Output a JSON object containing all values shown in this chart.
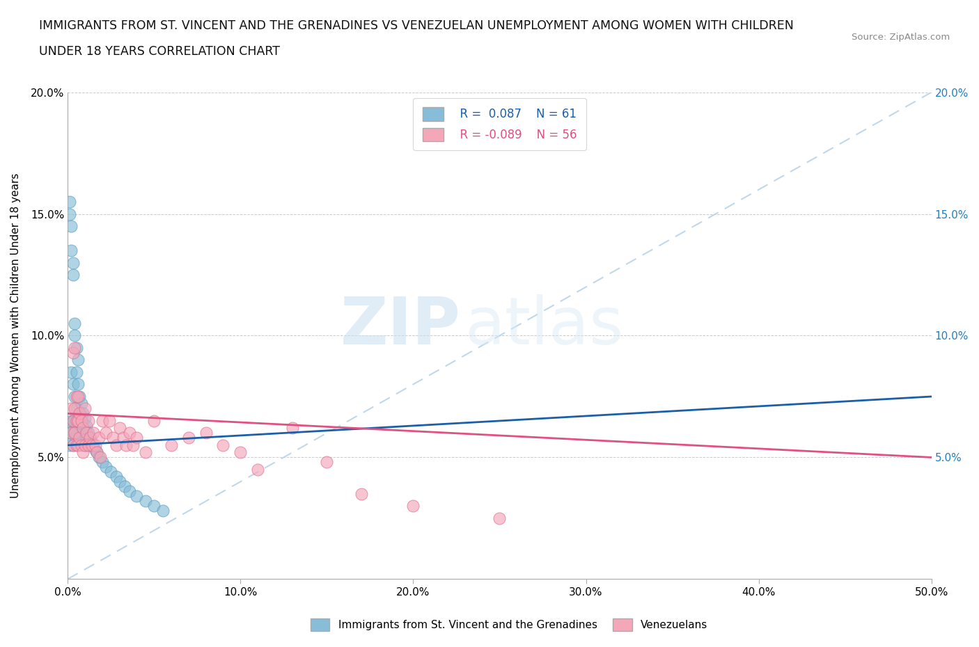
{
  "title_line1": "IMMIGRANTS FROM ST. VINCENT AND THE GRENADINES VS VENEZUELAN UNEMPLOYMENT AMONG WOMEN WITH CHILDREN",
  "title_line2": "UNDER 18 YEARS CORRELATION CHART",
  "source_text": "Source: ZipAtlas.com",
  "ylabel": "Unemployment Among Women with Children Under 18 years",
  "xlim": [
    0,
    0.5
  ],
  "ylim": [
    0,
    0.2
  ],
  "xticks": [
    0.0,
    0.1,
    0.2,
    0.3,
    0.4,
    0.5
  ],
  "xticklabels": [
    "0.0%",
    "10.0%",
    "20.0%",
    "30.0%",
    "40.0%",
    "50.0%"
  ],
  "yticks": [
    0.0,
    0.05,
    0.1,
    0.15,
    0.2
  ],
  "yticklabels_left": [
    "",
    "5.0%",
    "10.0%",
    "15.0%",
    "20.0%"
  ],
  "yticklabels_right": [
    "",
    "5.0%",
    "10.0%",
    "15.0%",
    "20.0%"
  ],
  "blue_R": 0.087,
  "blue_N": 61,
  "pink_R": -0.089,
  "pink_N": 56,
  "blue_color": "#87bdd8",
  "pink_color": "#f4a7b9",
  "blue_edge_color": "#5a9fc0",
  "pink_edge_color": "#e07090",
  "blue_line_color": "#1a5fa8",
  "pink_line_color": "#e05080",
  "diag_color": "#b8d4e8",
  "legend_label_blue": "Immigrants from St. Vincent and the Grenadines",
  "legend_label_pink": "Venezuelans",
  "watermark_zip": "ZIP",
  "watermark_atlas": "atlas",
  "blue_scatter_x": [
    0.001,
    0.001,
    0.001,
    0.001,
    0.002,
    0.002,
    0.002,
    0.002,
    0.002,
    0.003,
    0.003,
    0.003,
    0.003,
    0.003,
    0.003,
    0.004,
    0.004,
    0.004,
    0.004,
    0.004,
    0.005,
    0.005,
    0.005,
    0.005,
    0.005,
    0.006,
    0.006,
    0.006,
    0.006,
    0.007,
    0.007,
    0.007,
    0.008,
    0.008,
    0.008,
    0.009,
    0.009,
    0.01,
    0.01,
    0.01,
    0.011,
    0.011,
    0.012,
    0.012,
    0.013,
    0.014,
    0.015,
    0.016,
    0.017,
    0.018,
    0.02,
    0.022,
    0.025,
    0.028,
    0.03,
    0.033,
    0.036,
    0.04,
    0.045,
    0.05,
    0.055
  ],
  "blue_scatter_y": [
    0.155,
    0.15,
    0.06,
    0.055,
    0.145,
    0.135,
    0.085,
    0.065,
    0.06,
    0.13,
    0.125,
    0.08,
    0.065,
    0.06,
    0.055,
    0.105,
    0.1,
    0.075,
    0.065,
    0.06,
    0.095,
    0.085,
    0.07,
    0.065,
    0.06,
    0.09,
    0.08,
    0.065,
    0.06,
    0.075,
    0.068,
    0.06,
    0.072,
    0.065,
    0.058,
    0.068,
    0.062,
    0.066,
    0.06,
    0.055,
    0.063,
    0.058,
    0.06,
    0.055,
    0.058,
    0.056,
    0.055,
    0.053,
    0.052,
    0.05,
    0.048,
    0.046,
    0.044,
    0.042,
    0.04,
    0.038,
    0.036,
    0.034,
    0.032,
    0.03,
    0.028
  ],
  "pink_scatter_x": [
    0.002,
    0.002,
    0.003,
    0.003,
    0.003,
    0.004,
    0.004,
    0.004,
    0.005,
    0.005,
    0.005,
    0.006,
    0.006,
    0.006,
    0.007,
    0.007,
    0.008,
    0.008,
    0.009,
    0.009,
    0.01,
    0.01,
    0.011,
    0.012,
    0.012,
    0.013,
    0.014,
    0.015,
    0.016,
    0.017,
    0.018,
    0.019,
    0.02,
    0.022,
    0.024,
    0.026,
    0.028,
    0.03,
    0.032,
    0.034,
    0.036,
    0.038,
    0.04,
    0.045,
    0.05,
    0.06,
    0.07,
    0.08,
    0.09,
    0.1,
    0.11,
    0.13,
    0.15,
    0.17,
    0.2,
    0.25
  ],
  "pink_scatter_y": [
    0.07,
    0.06,
    0.093,
    0.065,
    0.055,
    0.095,
    0.07,
    0.06,
    0.075,
    0.065,
    0.055,
    0.075,
    0.065,
    0.055,
    0.068,
    0.058,
    0.065,
    0.055,
    0.062,
    0.052,
    0.07,
    0.055,
    0.06,
    0.065,
    0.055,
    0.058,
    0.055,
    0.06,
    0.055,
    0.052,
    0.058,
    0.05,
    0.065,
    0.06,
    0.065,
    0.058,
    0.055,
    0.062,
    0.058,
    0.055,
    0.06,
    0.055,
    0.058,
    0.052,
    0.065,
    0.055,
    0.058,
    0.06,
    0.055,
    0.052,
    0.045,
    0.062,
    0.048,
    0.035,
    0.03,
    0.025
  ],
  "blue_trendline_x": [
    0.0,
    0.5
  ],
  "blue_trendline_y": [
    0.055,
    0.075
  ],
  "pink_trendline_x": [
    0.0,
    0.5
  ],
  "pink_trendline_y": [
    0.068,
    0.05
  ]
}
